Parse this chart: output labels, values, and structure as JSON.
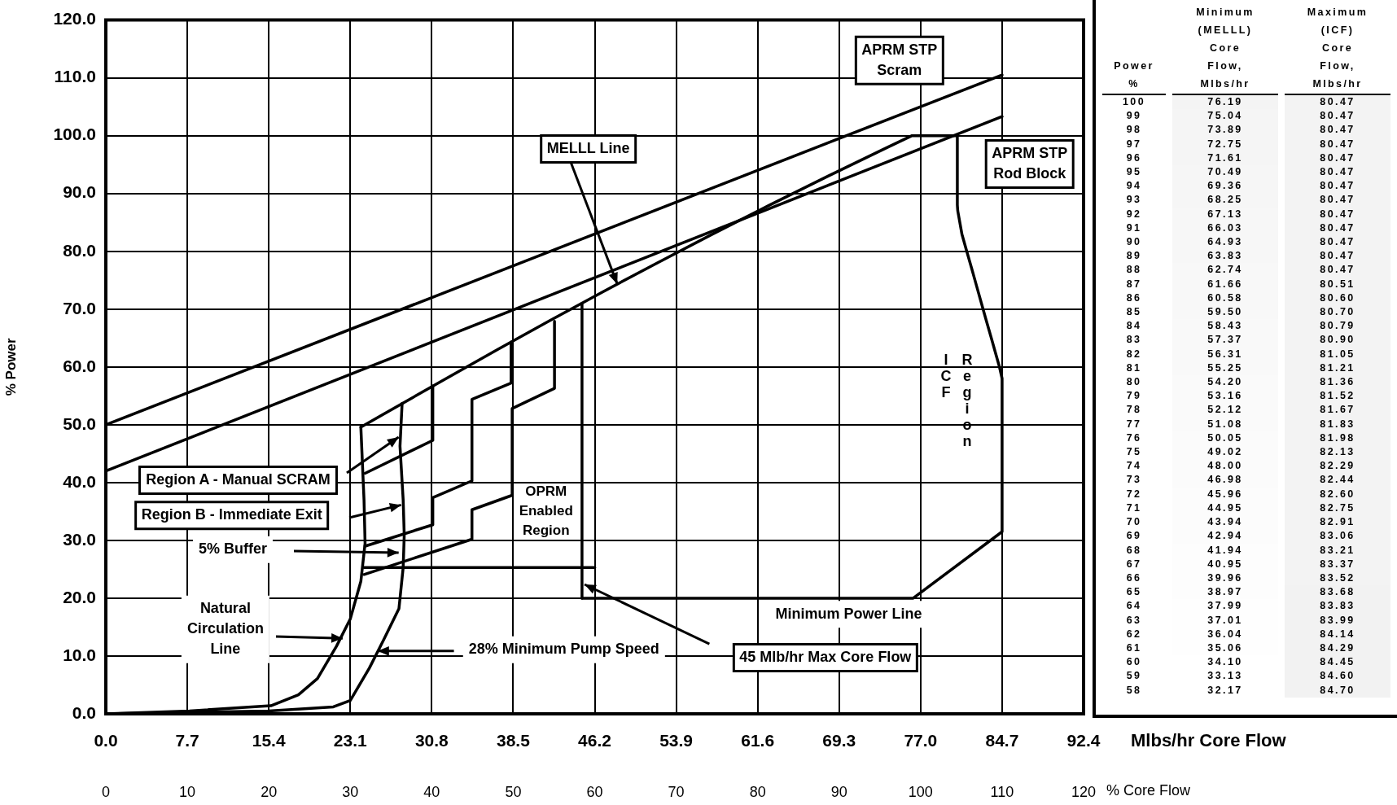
{
  "chart_data": [
    {
      "type": "line",
      "xlabel": "Mlbs/hr Core Flow",
      "x2label": "% Core Flow",
      "ylabel": "% Power",
      "xlim": [
        0,
        92.4
      ],
      "xticks": [
        {
          "value": 0,
          "label": "0.0"
        },
        7.7,
        15.4,
        23.1,
        30.8,
        38.5,
        46.2,
        53.9,
        61.6,
        69.3,
        {
          "value": 77,
          "label": "77.0"
        },
        84.7,
        92.4
      ],
      "x2lim": [
        0,
        120
      ],
      "x2ticks": [
        0,
        10,
        20,
        30,
        40,
        50,
        60,
        70,
        80,
        90,
        100,
        110,
        120
      ],
      "ylim": [
        0,
        120
      ],
      "yticks": [
        {
          "value": 0,
          "label": "0.0"
        },
        {
          "value": 10,
          "label": "10.0"
        },
        {
          "value": 20,
          "label": "20.0"
        },
        {
          "value": 30,
          "label": "30.0"
        },
        {
          "value": 40,
          "label": "40.0"
        },
        {
          "value": 50,
          "label": "50.0"
        },
        {
          "value": 60,
          "label": "60.0"
        },
        {
          "value": 70,
          "label": "70.0"
        },
        {
          "value": 80,
          "label": "80.0"
        },
        {
          "value": 90,
          "label": "90.0"
        },
        {
          "value": 100,
          "label": "100.0"
        },
        {
          "value": 110,
          "label": "110.0"
        },
        {
          "value": 120,
          "label": "120.0"
        }
      ],
      "grid": true,
      "series": [
        {
          "color": "#000000",
          "x": [
            0,
            84.7
          ],
          "values": [
            50,
            110.5
          ]
        },
        {
          "color": "#000000",
          "x": [
            0,
            84.7
          ],
          "values": [
            42,
            103.3
          ]
        },
        {
          "color": "#000000",
          "x": [
            24.1,
            32.17,
            37.01,
            41.94,
            46.98,
            52.12,
            57.37,
            62.74,
            68.25,
            73.89,
            76.19,
            80.47
          ],
          "values": [
            49.6,
            58,
            63,
            68,
            73,
            78,
            83,
            88,
            93,
            98,
            100,
            100
          ]
        },
        {
          "color": "#000000",
          "x": [
            80.47,
            80.47,
            80.51,
            80.9,
            81.36,
            81.83,
            82.29,
            82.75,
            83.21,
            83.68,
            84.14,
            84.45,
            84.7,
            84.7,
            76.3,
            45
          ],
          "values": [
            100,
            88,
            87,
            83,
            80,
            77,
            74,
            71,
            68,
            65,
            62,
            60,
            58,
            31.5,
            20,
            20
          ]
        },
        {
          "color": "#000000",
          "x": [
            45,
            45
          ],
          "values": [
            20,
            71
          ]
        },
        {
          "color": "#000000",
          "x": [
            0,
            7.9,
            15.6,
            18.2,
            20,
            21.8,
            23.1,
            24.1,
            24.5,
            24.4,
            24.1
          ],
          "values": [
            0,
            0.5,
            1.4,
            3.3,
            6.1,
            11.7,
            16.4,
            22.9,
            29.5,
            37,
            49.6
          ]
        },
        {
          "color": "#000000",
          "x": [
            0,
            15.4,
            21.5,
            23.1,
            24.9,
            26.2,
            27.7,
            28.1,
            28.2,
            28.1,
            27.8,
            28
          ],
          "values": [
            0,
            0.5,
            1.2,
            2.3,
            7.9,
            12.6,
            18.2,
            25.3,
            30.9,
            37,
            46.3,
            53.7
          ]
        },
        {
          "color": "#000000",
          "x": [
            24.5,
            30.9,
            30.9
          ],
          "values": [
            41.6,
            47.3,
            56.7
          ]
        },
        {
          "color": "#000000",
          "x": [
            24.5,
            30.9,
            30.9,
            34.6,
            34.6,
            38.3,
            38.3
          ],
          "values": [
            29,
            32.7,
            37.4,
            40.3,
            54.4,
            57.2,
            64.3
          ]
        },
        {
          "color": "#000000",
          "x": [
            24.4,
            34.6,
            34.6,
            38.4,
            38.4,
            42.4,
            42.4
          ],
          "values": [
            24.1,
            30.2,
            35.3,
            37.8,
            52.8,
            56.3,
            67.9
          ]
        },
        {
          "color": "#000000",
          "x": [
            24.4,
            46.2
          ],
          "values": [
            25.3,
            25.3
          ]
        }
      ],
      "annotations": [
        "APRM STP Scram",
        "APRM STP Rod Block",
        {
          "text": "MELLL Line",
          "x": 48.3,
          "y": 74.3
        },
        {
          "text": "Region A - Manual SCRAM",
          "x": 27.7,
          "y": 47.8
        },
        "Region B - Immediate Exit",
        "5% Buffer",
        "OPRM Enabled Region",
        "Natural Circulation Line",
        {
          "text": "28% Minimum Pump Speed",
          "x": 25.7,
          "y": 10.9
        },
        "45 Mlb/hr Max Core Flow",
        "Minimum Power Line",
        "ICF Region"
      ]
    },
    {
      "type": "heatmap",
      "ylabel": "Power %",
      "categories": [
        "Minimum (MELLL) Core Flow, Mlbs/hr",
        "Maximum (ICF) Core Flow, Mlbs/hr"
      ],
      "y_categories": [
        "100",
        "99",
        "98",
        "97",
        "96",
        "95",
        "94",
        "93",
        "92",
        "91",
        "90",
        "89",
        "88",
        "87",
        "86",
        "85",
        "84",
        "83",
        "82",
        "81",
        "80",
        "79",
        "78",
        "77",
        "76",
        "75",
        "74",
        "73",
        "72",
        "71",
        "70",
        "69",
        "68",
        "67",
        "66",
        "65",
        "64",
        "63",
        "62",
        "61",
        "60",
        "59",
        "58"
      ],
      "cells": [
        [
          76.19,
          80.47
        ],
        [
          75.04,
          80.47
        ],
        [
          73.89,
          80.47
        ],
        [
          72.75,
          80.47
        ],
        [
          71.61,
          80.47
        ],
        [
          70.49,
          80.47
        ],
        [
          69.36,
          80.47
        ],
        [
          68.25,
          80.47
        ],
        [
          67.13,
          80.47
        ],
        [
          66.03,
          80.47
        ],
        [
          64.93,
          80.47
        ],
        [
          63.83,
          80.47
        ],
        [
          62.74,
          80.47
        ],
        [
          61.66,
          80.51
        ],
        [
          60.58,
          80.6
        ],
        [
          59.5,
          80.7
        ],
        [
          58.43,
          80.79
        ],
        [
          57.37,
          80.9
        ],
        [
          56.31,
          81.05
        ],
        [
          55.25,
          81.21
        ],
        [
          54.2,
          81.36
        ],
        [
          53.16,
          81.52
        ],
        [
          52.12,
          81.67
        ],
        [
          51.08,
          81.83
        ],
        [
          50.05,
          81.98
        ],
        [
          49.02,
          82.13
        ],
        [
          48,
          82.29
        ],
        [
          46.98,
          82.44
        ],
        [
          45.96,
          82.6
        ],
        [
          44.95,
          82.75
        ],
        [
          43.94,
          82.91
        ],
        [
          42.94,
          83.06
        ],
        [
          41.94,
          83.21
        ],
        [
          40.95,
          83.37
        ],
        [
          39.96,
          83.52
        ],
        [
          38.97,
          83.68
        ],
        [
          37.99,
          83.83
        ],
        [
          37.01,
          83.99
        ],
        [
          36.04,
          84.14
        ],
        [
          35.06,
          84.29
        ],
        [
          34.1,
          84.45
        ],
        [
          33.13,
          84.6
        ],
        [
          32.17,
          84.7
        ]
      ],
      "cell_labels": [
        [
          "76.19",
          "80.47"
        ],
        [
          "75.04",
          "80.47"
        ],
        [
          "73.89",
          "80.47"
        ],
        [
          "72.75",
          "80.47"
        ],
        [
          "71.61",
          "80.47"
        ],
        [
          "70.49",
          "80.47"
        ],
        [
          "69.36",
          "80.47"
        ],
        [
          "68.25",
          "80.47"
        ],
        [
          "67.13",
          "80.47"
        ],
        [
          "66.03",
          "80.47"
        ],
        [
          "64.93",
          "80.47"
        ],
        [
          "63.83",
          "80.47"
        ],
        [
          "62.74",
          "80.47"
        ],
        [
          "61.66",
          "80.51"
        ],
        [
          "60.58",
          "80.60"
        ],
        [
          "59.50",
          "80.70"
        ],
        [
          "58.43",
          "80.79"
        ],
        [
          "57.37",
          "80.90"
        ],
        [
          "56.31",
          "81.05"
        ],
        [
          "55.25",
          "81.21"
        ],
        [
          "54.20",
          "81.36"
        ],
        [
          "53.16",
          "81.52"
        ],
        [
          "52.12",
          "81.67"
        ],
        [
          "51.08",
          "81.83"
        ],
        [
          "50.05",
          "81.98"
        ],
        [
          "49.02",
          "82.13"
        ],
        [
          "48.00",
          "82.29"
        ],
        [
          "46.98",
          "82.44"
        ],
        [
          "45.96",
          "82.60"
        ],
        [
          "44.95",
          "82.75"
        ],
        [
          "43.94",
          "82.91"
        ],
        [
          "42.94",
          "83.06"
        ],
        [
          "41.94",
          "83.21"
        ],
        [
          "40.95",
          "83.37"
        ],
        [
          "39.96",
          "83.52"
        ],
        [
          "38.97",
          "83.68"
        ],
        [
          "37.99",
          "83.83"
        ],
        [
          "37.01",
          "83.99"
        ],
        [
          "36.04",
          "84.14"
        ],
        [
          "35.06",
          "84.29"
        ],
        [
          "34.10",
          "84.45"
        ],
        [
          "33.13",
          "84.60"
        ],
        [
          "32.17",
          "84.70"
        ]
      ]
    }
  ]
}
